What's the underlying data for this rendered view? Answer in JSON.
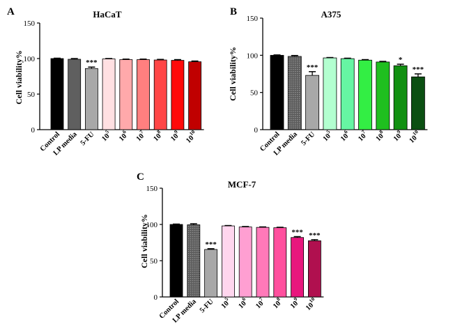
{
  "figure": {
    "panels": [
      {
        "letter": "A",
        "title": "HaCaT"
      },
      {
        "letter": "B",
        "title": "A375"
      },
      {
        "letter": "C",
        "title": "MCF-7"
      }
    ]
  },
  "chart_data": [
    {
      "type": "bar",
      "title": "HaCaT",
      "panel": "A",
      "ylabel": "Cell viability%",
      "xlabel": "",
      "ylim": [
        0,
        150
      ],
      "yticks": [
        0,
        50,
        100,
        150
      ],
      "categories": [
        "Control",
        "LP media",
        "5-FU",
        "10^5",
        "10^6",
        "10^7",
        "10^8",
        "10^9",
        "10^10"
      ],
      "category_labels": [
        {
          "base": "Control",
          "sup": ""
        },
        {
          "base": "LP media",
          "sup": ""
        },
        {
          "base": "5-FU",
          "sup": ""
        },
        {
          "base": "10",
          "sup": "5"
        },
        {
          "base": "10",
          "sup": "6"
        },
        {
          "base": "10",
          "sup": "7"
        },
        {
          "base": "10",
          "sup": "8"
        },
        {
          "base": "10",
          "sup": "9"
        },
        {
          "base": "10",
          "sup": "10"
        }
      ],
      "values": [
        100,
        99,
        86,
        99.5,
        98.5,
        98.5,
        98,
        97.5,
        95.5
      ],
      "errors": [
        0.5,
        1,
        2,
        0.5,
        0.7,
        0.7,
        0.8,
        1,
        1
      ],
      "significance": [
        "",
        "",
        "***",
        "",
        "",
        "",
        "",
        "",
        ""
      ],
      "colors": [
        "#000000",
        "#5f5f5f",
        "#a8a8a8",
        "#ffe0e2",
        "#ffa9ab",
        "#ff7f7f",
        "#ff4646",
        "#ff0a0a",
        "#c00000"
      ]
    },
    {
      "type": "bar",
      "title": "A375",
      "panel": "B",
      "ylabel": "Cell viability%",
      "xlabel": "",
      "ylim": [
        0,
        150
      ],
      "yticks": [
        0,
        50,
        100,
        150
      ],
      "categories": [
        "Control",
        "LP media",
        "5-FU",
        "10^5",
        "10^6",
        "10^7",
        "10^8",
        "10^9",
        "10^10"
      ],
      "category_labels": [
        {
          "base": "Control",
          "sup": ""
        },
        {
          "base": "LP media",
          "sup": ""
        },
        {
          "base": "5-FU",
          "sup": ""
        },
        {
          "base": "10",
          "sup": "5"
        },
        {
          "base": "10",
          "sup": "6"
        },
        {
          "base": "10",
          "sup": "7"
        },
        {
          "base": "10",
          "sup": "8"
        },
        {
          "base": "10",
          "sup": "9"
        },
        {
          "base": "10",
          "sup": "10"
        }
      ],
      "values": [
        100,
        98.5,
        73,
        96.5,
        95.5,
        93.5,
        91,
        86,
        71
      ],
      "errors": [
        0.5,
        1.2,
        5,
        0.5,
        0.6,
        0.7,
        0.8,
        2,
        4
      ],
      "significance": [
        "",
        "",
        "***",
        "",
        "",
        "",
        "",
        "*",
        "***"
      ],
      "colors": [
        "#000000",
        "#6a6a6a",
        "#a8a8a8",
        "#b3ffd0",
        "#66f5a3",
        "#33ee44",
        "#1fbf1f",
        "#119011",
        "#0b4f12"
      ]
    },
    {
      "type": "bar",
      "title": "MCF-7",
      "panel": "C",
      "ylabel": "Cell viability%",
      "xlabel": "",
      "ylim": [
        0,
        150
      ],
      "yticks": [
        0,
        50,
        100,
        150
      ],
      "categories": [
        "Control",
        "LP media",
        "5-FU",
        "10^5",
        "10^6",
        "10^7",
        "10^8",
        "10^9",
        "10^10"
      ],
      "category_labels": [
        {
          "base": "Control",
          "sup": ""
        },
        {
          "base": "LP media",
          "sup": ""
        },
        {
          "base": "5-FU",
          "sup": ""
        },
        {
          "base": "10",
          "sup": "5"
        },
        {
          "base": "10",
          "sup": "6"
        },
        {
          "base": "10",
          "sup": "7"
        },
        {
          "base": "10",
          "sup": "8"
        },
        {
          "base": "10",
          "sup": "9"
        },
        {
          "base": "10",
          "sup": "10"
        }
      ],
      "values": [
        100,
        99.5,
        65.5,
        98,
        96.5,
        96,
        95.5,
        82,
        77.5
      ],
      "errors": [
        0.5,
        1.5,
        1,
        0.5,
        0.6,
        0.6,
        0.6,
        1.2,
        1.5
      ],
      "significance": [
        "",
        "",
        "***",
        "",
        "",
        "",
        "",
        "***",
        "***"
      ],
      "colors": [
        "#000000",
        "#6a6a6a",
        "#a8a8a8",
        "#ffd6ee",
        "#ff9fd2",
        "#ff79b9",
        "#ff4f9e",
        "#e8177d",
        "#b0104f"
      ]
    }
  ]
}
